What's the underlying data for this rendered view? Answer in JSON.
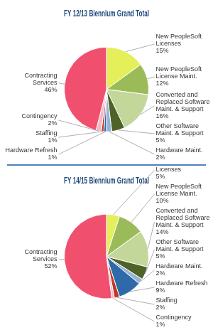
{
  "chart_data": [
    {
      "type": "pie",
      "title": "FY 12/13 Biennium Grand Total",
      "categories": [
        "New PeopleSoft Licenses",
        "New PeopleSoft License Maint.",
        "Converted and Replaced Software Maint. & Support",
        "Other Software Maint. & Support",
        "Hardware Maint.",
        "Hardware Refresh",
        "Staffing",
        "Contingency",
        "Contracting Services"
      ],
      "values": [
        15,
        12,
        16,
        5,
        2,
        1,
        1,
        2,
        46
      ],
      "value_labels": [
        "15%",
        "12%",
        "16%",
        "5%",
        "2%",
        "1%",
        "1%",
        "2%",
        "46%"
      ],
      "colors": [
        "#e4ef5a",
        "#9bbb59",
        "#c4d79b",
        "#4f6228",
        "#95b3d7",
        "#2e6aa8",
        "#c0392b",
        "#f4b6c2",
        "#f0506e"
      ],
      "data_labels": true
    },
    {
      "type": "pie",
      "title": "FY 14/15 Biennium Grand Total",
      "categories": [
        "New PeopleSoft Licenses",
        "New PeopleSoft License Maint.",
        "Converted and Replaced Software Maint. & Support",
        "Other Software Maint. & Support",
        "Hardware Maint.",
        "Hardware Refresh",
        "Staffing",
        "Contingency",
        "Contracting Services"
      ],
      "values": [
        5,
        10,
        14,
        5,
        2,
        9,
        2,
        1,
        52
      ],
      "value_labels": [
        "5%",
        "10%",
        "14%",
        "5%",
        "2%",
        "9%",
        "2%",
        "1%",
        "52%"
      ],
      "colors": [
        "#e4ef5a",
        "#9bbb59",
        "#c4d79b",
        "#4f6228",
        "#95b3d7",
        "#2e6aa8",
        "#c0392b",
        "#f4b6c2",
        "#f0506e"
      ],
      "data_labels": true
    }
  ]
}
